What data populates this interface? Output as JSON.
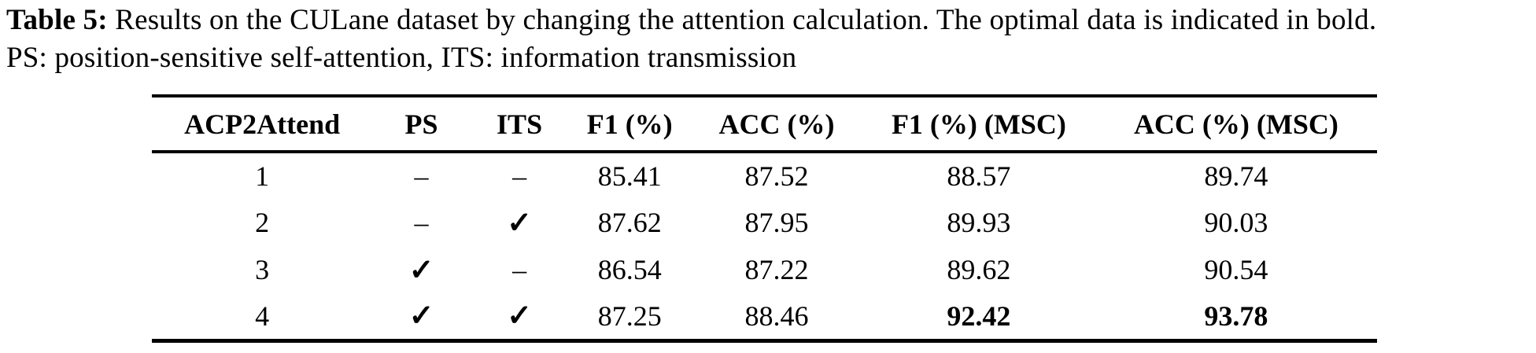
{
  "caption": {
    "label": "Table 5:",
    "line1": "Results on the CULane dataset by changing the attention calculation. The optimal data is indicated in bold.",
    "line2": "PS: position-sensitive self-attention, ITS: information transmission"
  },
  "table": {
    "columns": [
      "ACP2Attend",
      "PS",
      "ITS",
      "F1 (%)",
      "ACC (%)",
      "F1 (%) (MSC)",
      "ACC (%) (MSC)"
    ],
    "column_keys": [
      "acp2attend",
      "ps",
      "its",
      "f1",
      "acc",
      "f1-msc",
      "acc-msc"
    ],
    "check_glyph": "✓",
    "dash_glyph": "–",
    "rows": [
      {
        "cells": [
          "1",
          "–",
          "–",
          "85.41",
          "87.52",
          "88.57",
          "89.74"
        ],
        "bold": []
      },
      {
        "cells": [
          "2",
          "–",
          "✓",
          "87.62",
          "87.95",
          "89.93",
          "90.03"
        ],
        "bold": []
      },
      {
        "cells": [
          "3",
          "✓",
          "–",
          "86.54",
          "87.22",
          "89.62",
          "90.54"
        ],
        "bold": []
      },
      {
        "cells": [
          "4",
          "✓",
          "✓",
          "87.25",
          "88.46",
          "92.42",
          "93.78"
        ],
        "bold": [
          5,
          6
        ]
      }
    ]
  },
  "chart_data": {
    "type": "table",
    "title": "Table 5: Results on the CULane dataset by changing the attention calculation",
    "categories": [
      "ACP2Attend",
      "PS",
      "ITS",
      "F1 (%)",
      "ACC (%)",
      "F1 (%) (MSC)",
      "ACC (%) (MSC)"
    ],
    "series": [
      {
        "name": "F1 (%)",
        "values": [
          85.41,
          87.62,
          86.54,
          87.25
        ]
      },
      {
        "name": "ACC (%)",
        "values": [
          87.52,
          87.95,
          87.22,
          88.46
        ]
      },
      {
        "name": "F1 (%) (MSC)",
        "values": [
          88.57,
          89.93,
          89.62,
          92.42
        ]
      },
      {
        "name": "ACC (%) (MSC)",
        "values": [
          89.74,
          90.03,
          90.54,
          93.78
        ]
      }
    ]
  },
  "colors": {
    "text": "#000000",
    "background": "#ffffff",
    "rule": "#000000"
  }
}
